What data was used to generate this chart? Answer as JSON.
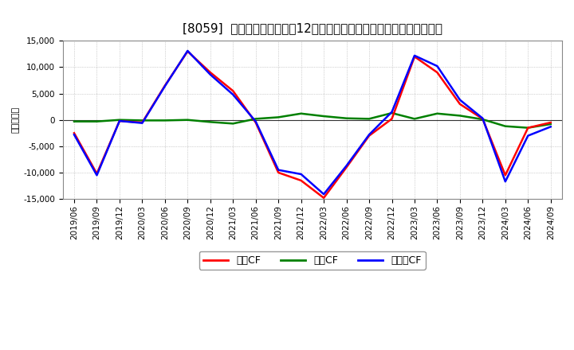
{
  "title": "[8059]  キャッシュフローの12か月移動合計の対前年同期増減額の推移",
  "ylabel": "（百万円）",
  "background_color": "#ffffff",
  "plot_background_color": "#ffffff",
  "grid_color": "#aaaaaa",
  "ylim": [
    -15000,
    15000
  ],
  "yticks": [
    -15000,
    -10000,
    -5000,
    0,
    5000,
    10000,
    15000
  ],
  "xtick_labels": [
    "2019/06",
    "2019/09",
    "2019/12",
    "2020/03",
    "2020/06",
    "2020/09",
    "2020/12",
    "2021/03",
    "2021/06",
    "2021/09",
    "2021/12",
    "2022/03",
    "2022/06",
    "2022/09",
    "2022/12",
    "2023/03",
    "2023/06",
    "2023/09",
    "2023/12",
    "2024/03",
    "2024/06",
    "2024/09"
  ],
  "series": [
    {
      "name": "営業CF",
      "color": "#ff0000",
      "linewidth": 1.8,
      "zorder": 3,
      "data": [
        -2500,
        -10200,
        -200,
        -500,
        6500,
        13000,
        9000,
        5500,
        -500,
        -10000,
        -11500,
        -14800,
        -9000,
        -3000,
        200,
        12000,
        9000,
        3000,
        200,
        -10500,
        -1500,
        -500
      ]
    },
    {
      "name": "投資CF",
      "color": "#008000",
      "linewidth": 1.8,
      "zorder": 2,
      "data": [
        -300,
        -300,
        0,
        -100,
        -100,
        0,
        -400,
        -700,
        200,
        500,
        1200,
        700,
        300,
        200,
        1300,
        200,
        1200,
        800,
        100,
        -1200,
        -1500,
        -800
      ]
    },
    {
      "name": "フリーCF",
      "color": "#0000ff",
      "linewidth": 1.8,
      "zorder": 4,
      "data": [
        -2800,
        -10500,
        -200,
        -600,
        6400,
        13100,
        8600,
        4800,
        -300,
        -9500,
        -10300,
        -14100,
        -8700,
        -2800,
        1500,
        12200,
        10200,
        3800,
        300,
        -11700,
        -3000,
        -1300
      ]
    }
  ],
  "legend_labels": [
    "営業CF",
    "投資CF",
    "フリーCF"
  ],
  "legend_colors": [
    "#ff0000",
    "#008000",
    "#0000ff"
  ],
  "title_fontsize": 11,
  "ylabel_fontsize": 8,
  "tick_fontsize": 7.5,
  "legend_fontsize": 9
}
